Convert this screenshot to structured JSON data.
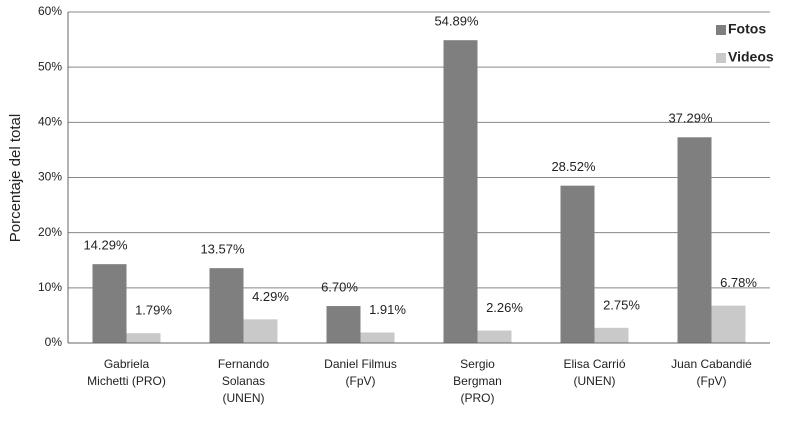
{
  "chart_data": {
    "type": "bar",
    "y_label": "Porcentaje del total",
    "categories": [
      "Gabriela\nMichetti (PRO)",
      "Fernando\nSolanas\n(UNEN)",
      "Daniel Filmus\n(FpV)",
      "Sergio\nBergman\n(PRO)",
      "Elisa Carrió\n(UNEN)",
      "Juan Cabandié\n(FpV)"
    ],
    "series": [
      {
        "name": "Fotos",
        "color": "#7f7f7f",
        "values": [
          14.29,
          13.57,
          6.7,
          54.89,
          28.52,
          37.29
        ],
        "value_labels": [
          "14.29%",
          "13.57%",
          "6.70%",
          "54.89%",
          "28.52%",
          "37.29%"
        ]
      },
      {
        "name": "Videos",
        "color": "#c9c9c9",
        "values": [
          1.79,
          4.29,
          1.91,
          2.26,
          2.75,
          6.78
        ],
        "value_labels": [
          "1.79%",
          "4.29%",
          "1.91%",
          "2.26%",
          "2.75%",
          "6.78%"
        ]
      }
    ],
    "ylim": [
      0,
      60
    ],
    "yticks": [
      {
        "value": 0,
        "label": "0%"
      },
      {
        "value": 10,
        "label": "10%"
      },
      {
        "value": 20,
        "label": "20%"
      },
      {
        "value": 30,
        "label": "30%"
      },
      {
        "value": 40,
        "label": "40%"
      },
      {
        "value": 50,
        "label": "50%"
      },
      {
        "value": 60,
        "label": "60%"
      }
    ],
    "grid": true,
    "legend": "top-right"
  }
}
